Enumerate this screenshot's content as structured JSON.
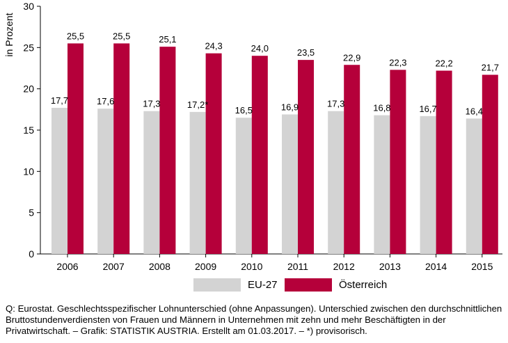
{
  "chart_data": {
    "type": "bar",
    "categories": [
      "2006",
      "2007",
      "2008",
      "2009",
      "2010",
      "2011",
      "2012",
      "2013",
      "2014",
      "2015"
    ],
    "series": [
      {
        "name": "EU-27",
        "color": "#d3d3d3",
        "values": [
          17.7,
          17.6,
          17.3,
          17.2,
          16.5,
          16.9,
          17.3,
          16.8,
          16.7,
          16.4
        ],
        "labels": [
          "17,7",
          "17,6",
          "17,3",
          "17,2*",
          "16,5",
          "16,9",
          "17,3",
          "16,8",
          "16,7",
          "16,4"
        ]
      },
      {
        "name": "Österreich",
        "color": "#b5003a",
        "values": [
          25.5,
          25.5,
          25.1,
          24.3,
          24.0,
          23.5,
          22.9,
          22.3,
          22.2,
          21.7
        ],
        "labels": [
          "25,5",
          "25,5",
          "25,1",
          "24,3",
          "24,0",
          "23,5",
          "22,9",
          "22,3",
          "22,2",
          "21,7"
        ]
      }
    ],
    "ylabel": "in Prozent",
    "ylim": [
      0,
      30
    ],
    "yticks": [
      "0",
      "5",
      "10",
      "15",
      "20",
      "25",
      "30"
    ],
    "grid": false,
    "legend_position": "bottom"
  },
  "source_note": "Q: Eurostat. Geschlechtsspezifischer Lohnunterschied (ohne Anpassungen). Unterschied zwischen den durchschnittlichen Bruttostundenverdiensten von Frauen und Männern in Unternehmen mit zehn und mehr Beschäftigten in der Privatwirtschaft. – Grafik: STATISTIK AUSTRIA. Erstellt am 01.03.2017. – *) provisorisch."
}
